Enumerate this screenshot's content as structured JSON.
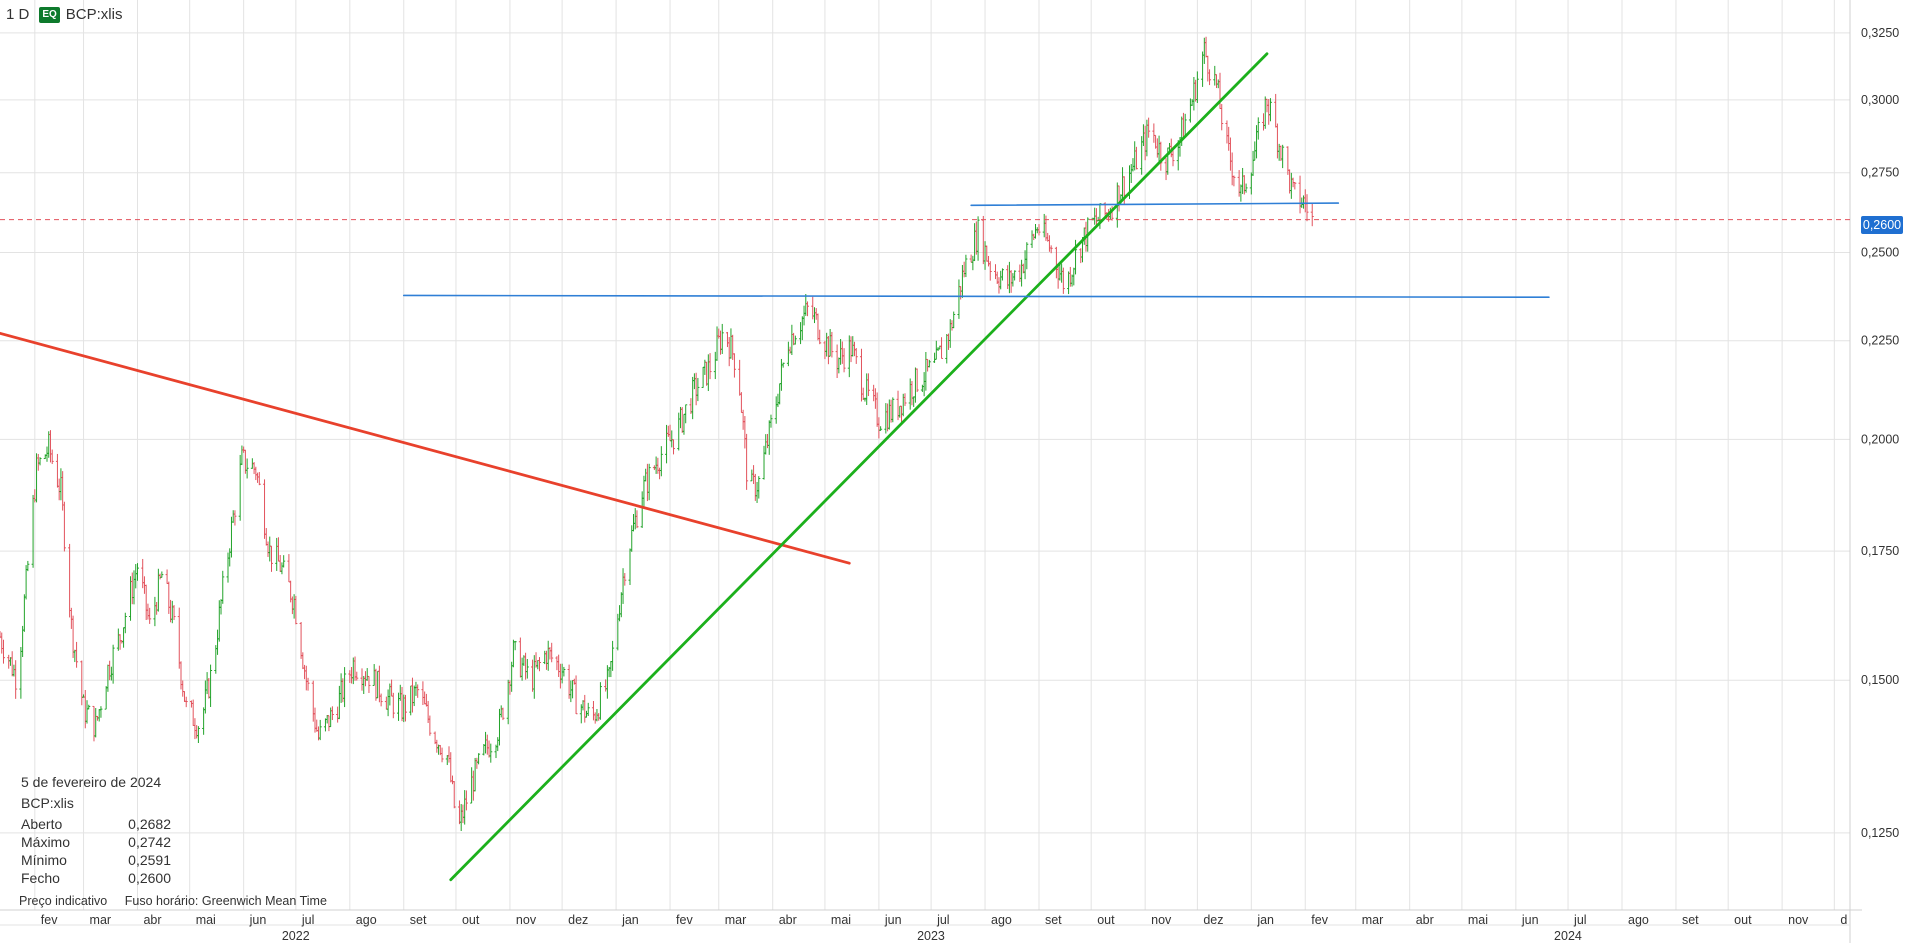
{
  "header": {
    "interval": "1 D",
    "badge": "EQ",
    "symbol": "BCP:xlis"
  },
  "infobox": {
    "date": "5 de fevereiro de 2024",
    "symbol": "BCP:xlis",
    "rows": [
      {
        "label": "Aberto",
        "value": "0,2682"
      },
      {
        "label": "Máximo",
        "value": "0,2742"
      },
      {
        "label": "Mínimo",
        "value": "0,2591"
      },
      {
        "label": "Fecho",
        "value": "0,2600"
      }
    ]
  },
  "footer": {
    "note1": "Preço indicativo",
    "note2": "Fuso horário: Greenwich Mean Time"
  },
  "colors": {
    "up": "#22a32a",
    "down": "#e2525c",
    "grid": "#e3e3e3",
    "red_line": "#e8412c",
    "green_line": "#1cb01c",
    "blue_line": "#2f7fd6",
    "price_line": "#e2525c",
    "price_tag": "#1f6fd1"
  },
  "chart_data": {
    "type": "ohlc",
    "y_scale": "log",
    "x_range": [
      "2022-01-12",
      "2024-12-10"
    ],
    "ylim": [
      0.114,
      0.338
    ],
    "y_ticks": [
      {
        "value": 0.325,
        "label": "0,3250"
      },
      {
        "value": 0.3,
        "label": "0,3000"
      },
      {
        "value": 0.275,
        "label": "0,2750"
      },
      {
        "value": 0.25,
        "label": "0,2500"
      },
      {
        "value": 0.225,
        "label": "0,2250"
      },
      {
        "value": 0.2,
        "label": "0,2000"
      },
      {
        "value": 0.175,
        "label": "0,1750"
      },
      {
        "value": 0.15,
        "label": "0,1500"
      },
      {
        "value": 0.125,
        "label": "0,1250"
      }
    ],
    "x_month_ticks": [
      {
        "date": "2022-02-01",
        "label": "fev"
      },
      {
        "date": "2022-03-01",
        "label": "mar"
      },
      {
        "date": "2022-04-01",
        "label": "abr"
      },
      {
        "date": "2022-05-01",
        "label": "mai"
      },
      {
        "date": "2022-06-01",
        "label": "jun"
      },
      {
        "date": "2022-07-01",
        "label": "jul"
      },
      {
        "date": "2022-08-01",
        "label": "ago"
      },
      {
        "date": "2022-09-01",
        "label": "set"
      },
      {
        "date": "2022-10-01",
        "label": "out"
      },
      {
        "date": "2022-11-01",
        "label": "nov"
      },
      {
        "date": "2022-12-01",
        "label": "dez"
      },
      {
        "date": "2023-01-01",
        "label": "jan"
      },
      {
        "date": "2023-02-01",
        "label": "fev"
      },
      {
        "date": "2023-03-01",
        "label": "mar"
      },
      {
        "date": "2023-04-01",
        "label": "abr"
      },
      {
        "date": "2023-05-01",
        "label": "mai"
      },
      {
        "date": "2023-06-01",
        "label": "jun"
      },
      {
        "date": "2023-07-01",
        "label": "jul"
      },
      {
        "date": "2023-08-01",
        "label": "ago"
      },
      {
        "date": "2023-09-01",
        "label": "set"
      },
      {
        "date": "2023-10-01",
        "label": "out"
      },
      {
        "date": "2023-11-01",
        "label": "nov"
      },
      {
        "date": "2023-12-01",
        "label": "dez"
      },
      {
        "date": "2024-01-01",
        "label": "jan"
      },
      {
        "date": "2024-02-01",
        "label": "fev"
      },
      {
        "date": "2024-03-01",
        "label": "mar"
      },
      {
        "date": "2024-04-01",
        "label": "abr"
      },
      {
        "date": "2024-05-01",
        "label": "mai"
      },
      {
        "date": "2024-06-01",
        "label": "jun"
      },
      {
        "date": "2024-07-01",
        "label": "jul"
      },
      {
        "date": "2024-08-01",
        "label": "ago"
      },
      {
        "date": "2024-09-01",
        "label": "set"
      },
      {
        "date": "2024-10-01",
        "label": "out"
      },
      {
        "date": "2024-11-01",
        "label": "nov"
      },
      {
        "date": "2024-12-01",
        "label": "d"
      }
    ],
    "x_year_ticks": [
      {
        "date": "2022-07-01",
        "label": "2022"
      },
      {
        "date": "2023-07-01",
        "label": "2023"
      },
      {
        "date": "2024-07-01",
        "label": "2024"
      }
    ],
    "last_price": {
      "value": 0.26,
      "label": "0,2600"
    },
    "trendlines": [
      {
        "name": "red-trendline",
        "color": "red_line",
        "points": [
          [
            "2022-01-12",
            0.227
          ],
          [
            "2023-05-15",
            0.1725
          ]
        ]
      },
      {
        "name": "green-trendline",
        "color": "green_line",
        "points": [
          [
            "2022-09-28",
            0.1182
          ],
          [
            "2024-01-10",
            0.317
          ]
        ]
      },
      {
        "name": "blue-trendline-upper",
        "color": "blue_line",
        "points": [
          [
            "2023-07-24",
            0.2645
          ],
          [
            "2024-02-20",
            0.2652
          ]
        ]
      },
      {
        "name": "blue-trendline-lower",
        "color": "blue_line",
        "points": [
          [
            "2022-09-01",
            0.2375
          ],
          [
            "2024-06-20",
            0.237
          ]
        ]
      }
    ],
    "anchors": [
      [
        "2022-01-12",
        0.158
      ],
      [
        "2022-01-22",
        0.15
      ],
      [
        "2022-01-28",
        0.172
      ],
      [
        "2022-02-02",
        0.193
      ],
      [
        "2022-02-09",
        0.198
      ],
      [
        "2022-02-16",
        0.188
      ],
      [
        "2022-02-22",
        0.16
      ],
      [
        "2022-03-01",
        0.145
      ],
      [
        "2022-03-08",
        0.142
      ],
      [
        "2022-03-15",
        0.152
      ],
      [
        "2022-03-22",
        0.158
      ],
      [
        "2022-04-01",
        0.172
      ],
      [
        "2022-04-08",
        0.16
      ],
      [
        "2022-04-15",
        0.17
      ],
      [
        "2022-04-22",
        0.16
      ],
      [
        "2022-04-29",
        0.145
      ],
      [
        "2022-05-07",
        0.142
      ],
      [
        "2022-05-14",
        0.152
      ],
      [
        "2022-05-22",
        0.172
      ],
      [
        "2022-05-31",
        0.195
      ],
      [
        "2022-06-08",
        0.193
      ],
      [
        "2022-06-16",
        0.175
      ],
      [
        "2022-06-22",
        0.172
      ],
      [
        "2022-06-30",
        0.165
      ],
      [
        "2022-07-07",
        0.15
      ],
      [
        "2022-07-14",
        0.14
      ],
      [
        "2022-07-24",
        0.145
      ],
      [
        "2022-08-03",
        0.153
      ],
      [
        "2022-08-12",
        0.151
      ],
      [
        "2022-08-22",
        0.147
      ],
      [
        "2022-08-31",
        0.145
      ],
      [
        "2022-09-09",
        0.148
      ],
      [
        "2022-09-18",
        0.141
      ],
      [
        "2022-09-26",
        0.137
      ],
      [
        "2022-10-02",
        0.125
      ],
      [
        "2022-10-09",
        0.132
      ],
      [
        "2022-10-18",
        0.138
      ],
      [
        "2022-10-26",
        0.142
      ],
      [
        "2022-11-03",
        0.155
      ],
      [
        "2022-11-13",
        0.15
      ],
      [
        "2022-11-22",
        0.155
      ],
      [
        "2022-12-01",
        0.152
      ],
      [
        "2022-12-08",
        0.147
      ],
      [
        "2022-12-18",
        0.143
      ],
      [
        "2022-12-28",
        0.15
      ],
      [
        "2023-01-06",
        0.172
      ],
      [
        "2023-01-16",
        0.188
      ],
      [
        "2023-01-26",
        0.196
      ],
      [
        "2023-02-05",
        0.202
      ],
      [
        "2023-02-15",
        0.212
      ],
      [
        "2023-02-24",
        0.218
      ],
      [
        "2023-03-04",
        0.228
      ],
      [
        "2023-03-12",
        0.218
      ],
      [
        "2023-03-18",
        0.188
      ],
      [
        "2023-03-24",
        0.19
      ],
      [
        "2023-04-01",
        0.205
      ],
      [
        "2023-04-10",
        0.225
      ],
      [
        "2023-04-22",
        0.234
      ],
      [
        "2023-04-30",
        0.226
      ],
      [
        "2023-05-08",
        0.22
      ],
      [
        "2023-05-16",
        0.223
      ],
      [
        "2023-05-24",
        0.212
      ],
      [
        "2023-06-01",
        0.205
      ],
      [
        "2023-06-10",
        0.207
      ],
      [
        "2023-06-18",
        0.212
      ],
      [
        "2023-06-24",
        0.215
      ],
      [
        "2023-07-03",
        0.218
      ],
      [
        "2023-07-12",
        0.228
      ],
      [
        "2023-07-20",
        0.245
      ],
      [
        "2023-07-28",
        0.256
      ],
      [
        "2023-08-05",
        0.245
      ],
      [
        "2023-08-14",
        0.241
      ],
      [
        "2023-08-22",
        0.246
      ],
      [
        "2023-08-31",
        0.258
      ],
      [
        "2023-09-08",
        0.251
      ],
      [
        "2023-09-16",
        0.24
      ],
      [
        "2023-09-24",
        0.252
      ],
      [
        "2023-10-02",
        0.259
      ],
      [
        "2023-10-10",
        0.262
      ],
      [
        "2023-10-18",
        0.27
      ],
      [
        "2023-10-26",
        0.278
      ],
      [
        "2023-11-04",
        0.29
      ],
      [
        "2023-11-12",
        0.279
      ],
      [
        "2023-11-20",
        0.285
      ],
      [
        "2023-11-28",
        0.3
      ],
      [
        "2023-12-05",
        0.318
      ],
      [
        "2023-12-12",
        0.305
      ],
      [
        "2023-12-18",
        0.283
      ],
      [
        "2023-12-26",
        0.268
      ],
      [
        "2024-01-03",
        0.282
      ],
      [
        "2024-01-10",
        0.3
      ],
      [
        "2024-01-17",
        0.285
      ],
      [
        "2024-01-25",
        0.268
      ],
      [
        "2024-02-01",
        0.265
      ],
      [
        "2024-02-05",
        0.26
      ]
    ]
  }
}
